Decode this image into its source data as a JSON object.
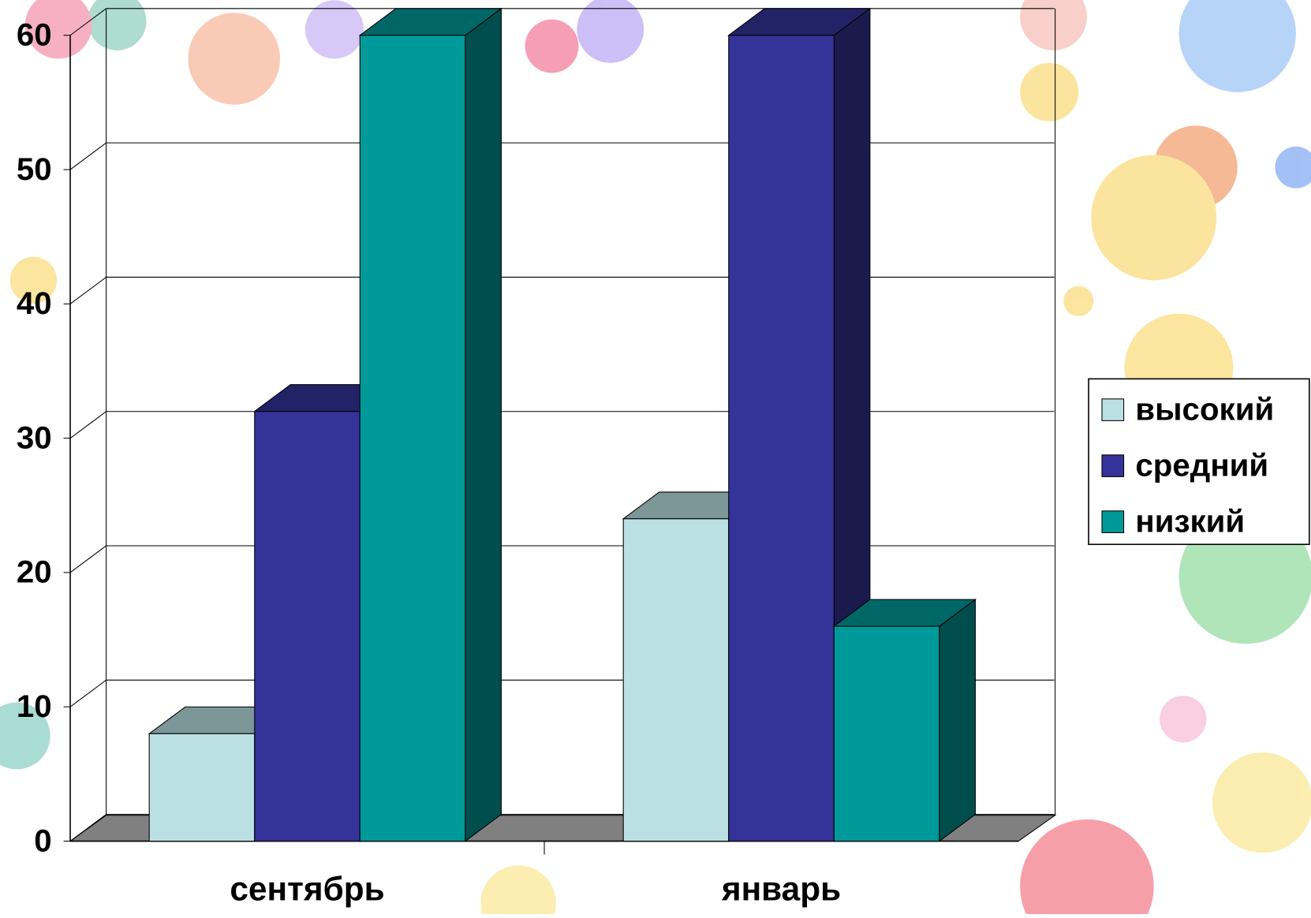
{
  "chart_data": {
    "type": "bar3d",
    "categories": [
      "сентябрь",
      "январь"
    ],
    "series": [
      {
        "name": "высокий",
        "color": "#bbe0e3",
        "values": [
          8,
          24
        ]
      },
      {
        "name": "средний",
        "color": "#333399",
        "values": [
          32,
          60
        ]
      },
      {
        "name": "низкий",
        "color": "#009999",
        "values": [
          60,
          16
        ]
      }
    ],
    "ylim": [
      0,
      60
    ],
    "yticks": [
      0,
      10,
      20,
      30,
      40,
      50,
      60
    ],
    "grid": true,
    "legend": "right"
  }
}
